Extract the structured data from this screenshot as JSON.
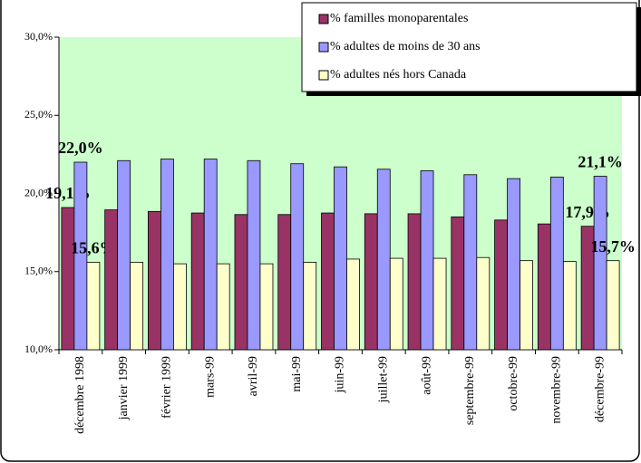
{
  "chart_data": {
    "type": "bar",
    "categories": [
      "décembre 1998",
      "janvier 1999",
      "février 1999",
      "mars-99",
      "avril-99",
      "mai-99",
      "juin-99",
      "juillet-99",
      "août-99",
      "septembre-99",
      "octobre-99",
      "novembre-99",
      "décembre-99"
    ],
    "series": [
      {
        "name": "% familles monoparentales",
        "color": "#993366",
        "values": [
          19.1,
          18.95,
          18.85,
          18.75,
          18.65,
          18.65,
          18.75,
          18.7,
          18.7,
          18.5,
          18.3,
          18.05,
          17.9
        ],
        "value_labels": [
          "19,1%",
          null,
          null,
          null,
          null,
          null,
          null,
          null,
          null,
          null,
          null,
          null,
          "17,9%"
        ]
      },
      {
        "name": "% adultes de moins de 30 ans",
        "color": "#9999ff",
        "values": [
          22.0,
          22.1,
          22.2,
          22.2,
          22.1,
          21.9,
          21.7,
          21.55,
          21.45,
          21.2,
          20.95,
          21.05,
          21.1
        ],
        "value_labels": [
          "22,0%",
          null,
          null,
          null,
          null,
          null,
          null,
          null,
          null,
          null,
          null,
          null,
          "21,1%"
        ]
      },
      {
        "name": "% adultes nés hors Canada",
        "color": "#ffffcc",
        "values": [
          15.6,
          15.6,
          15.5,
          15.5,
          15.5,
          15.6,
          15.8,
          15.85,
          15.85,
          15.9,
          15.7,
          15.65,
          15.7
        ],
        "value_labels": [
          "15,6%",
          null,
          null,
          null,
          null,
          null,
          null,
          null,
          null,
          null,
          null,
          null,
          "15,7%"
        ]
      }
    ],
    "ylim": [
      10,
      30
    ],
    "yticks": [
      {
        "value": 10,
        "label": "10,0%"
      },
      {
        "value": 15,
        "label": "15,0%"
      },
      {
        "value": 20,
        "label": "20,0%"
      },
      {
        "value": 25,
        "label": "25,0%"
      },
      {
        "value": 30,
        "label": "30,0%"
      }
    ],
    "plot_background": "#ccffcc",
    "legend": "top-right"
  }
}
